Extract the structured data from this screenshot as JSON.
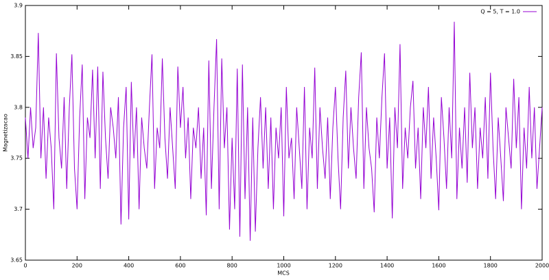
{
  "chart_data": {
    "type": "line",
    "x_label": "MCS",
    "y_label": "Magnetizacao",
    "x": [
      0,
      10,
      20,
      30,
      40,
      50,
      60,
      70,
      80,
      90,
      100,
      110,
      120,
      130,
      140,
      150,
      160,
      170,
      180,
      190,
      200,
      210,
      220,
      230,
      240,
      250,
      260,
      270,
      280,
      290,
      300,
      310,
      320,
      330,
      340,
      350,
      360,
      370,
      380,
      390,
      400,
      410,
      420,
      430,
      440,
      450,
      460,
      470,
      480,
      490,
      500,
      510,
      520,
      530,
      540,
      550,
      560,
      570,
      580,
      590,
      600,
      610,
      620,
      630,
      640,
      650,
      660,
      670,
      680,
      690,
      700,
      710,
      720,
      730,
      740,
      750,
      760,
      770,
      780,
      790,
      800,
      810,
      820,
      830,
      840,
      850,
      860,
      870,
      880,
      890,
      900,
      910,
      920,
      930,
      940,
      950,
      960,
      970,
      980,
      990,
      1000,
      1010,
      1020,
      1030,
      1040,
      1050,
      1060,
      1070,
      1080,
      1090,
      1100,
      1110,
      1120,
      1130,
      1140,
      1150,
      1160,
      1170,
      1180,
      1190,
      1200,
      1210,
      1220,
      1230,
      1240,
      1250,
      1260,
      1270,
      1280,
      1290,
      1300,
      1310,
      1320,
      1330,
      1340,
      1350,
      1360,
      1370,
      1380,
      1390,
      1400,
      1410,
      1420,
      1430,
      1440,
      1450,
      1460,
      1470,
      1480,
      1490,
      1500,
      1510,
      1520,
      1530,
      1540,
      1550,
      1560,
      1570,
      1580,
      1590,
      1600,
      1610,
      1620,
      1630,
      1640,
      1650,
      1660,
      1670,
      1680,
      1690,
      1700,
      1710,
      1720,
      1730,
      1740,
      1750,
      1760,
      1770,
      1780,
      1790,
      1800,
      1810,
      1820,
      1830,
      1840,
      1850,
      1860,
      1870,
      1880,
      1890,
      1900,
      1910,
      1920,
      1930,
      1940,
      1950,
      1960,
      1970,
      1980,
      1990,
      2000
    ],
    "series": [
      {
        "name": "Q = 5, T = 1.0",
        "color": "#9400d3",
        "values": [
          3.79,
          3.75,
          3.8,
          3.76,
          3.78,
          3.873,
          3.75,
          3.8,
          3.73,
          3.79,
          3.76,
          3.7,
          3.853,
          3.77,
          3.74,
          3.81,
          3.72,
          3.8,
          3.852,
          3.74,
          3.7,
          3.79,
          3.842,
          3.71,
          3.79,
          3.77,
          3.837,
          3.75,
          3.84,
          3.72,
          3.835,
          3.77,
          3.73,
          3.8,
          3.78,
          3.75,
          3.81,
          3.685,
          3.78,
          3.82,
          3.69,
          3.825,
          3.75,
          3.8,
          3.7,
          3.79,
          3.76,
          3.74,
          3.8,
          3.852,
          3.72,
          3.78,
          3.76,
          3.848,
          3.77,
          3.73,
          3.8,
          3.76,
          3.72,
          3.84,
          3.78,
          3.82,
          3.75,
          3.79,
          3.71,
          3.78,
          3.76,
          3.8,
          3.73,
          3.78,
          3.694,
          3.846,
          3.72,
          3.8,
          3.867,
          3.7,
          3.848,
          3.76,
          3.8,
          3.68,
          3.77,
          3.7,
          3.838,
          3.673,
          3.842,
          3.71,
          3.8,
          3.669,
          3.79,
          3.678,
          3.76,
          3.81,
          3.74,
          3.8,
          3.72,
          3.79,
          3.7,
          3.78,
          3.75,
          3.8,
          3.693,
          3.82,
          3.75,
          3.77,
          3.71,
          3.8,
          3.76,
          3.72,
          3.82,
          3.7,
          3.78,
          3.75,
          3.839,
          3.72,
          3.8,
          3.76,
          3.73,
          3.79,
          3.71,
          3.78,
          3.82,
          3.75,
          3.7,
          3.79,
          3.836,
          3.74,
          3.8,
          3.76,
          3.73,
          3.81,
          3.854,
          3.72,
          3.8,
          3.76,
          3.74,
          3.697,
          3.79,
          3.75,
          3.81,
          3.853,
          3.74,
          3.79,
          3.691,
          3.8,
          3.76,
          3.862,
          3.72,
          3.78,
          3.75,
          3.8,
          3.826,
          3.74,
          3.78,
          3.71,
          3.8,
          3.76,
          3.82,
          3.73,
          3.79,
          3.75,
          3.699,
          3.81,
          3.77,
          3.72,
          3.8,
          3.75,
          3.884,
          3.71,
          3.78,
          3.74,
          3.8,
          3.726,
          3.834,
          3.76,
          3.8,
          3.72,
          3.78,
          3.75,
          3.81,
          3.73,
          3.834,
          3.76,
          3.71,
          3.79,
          3.75,
          3.708,
          3.8,
          3.77,
          3.74,
          3.828,
          3.76,
          3.81,
          3.7,
          3.78,
          3.74,
          3.82,
          3.75,
          3.8,
          3.72,
          3.76,
          3.8
        ]
      }
    ],
    "xlim": [
      0,
      2000
    ],
    "xticks": [
      0,
      200,
      400,
      600,
      800,
      1000,
      1200,
      1400,
      1600,
      1800,
      2000
    ],
    "ylim": [
      3.65,
      3.9
    ],
    "yticks": [
      3.65,
      3.7,
      3.75,
      3.8,
      3.85,
      3.9
    ],
    "legend": "upper right"
  }
}
